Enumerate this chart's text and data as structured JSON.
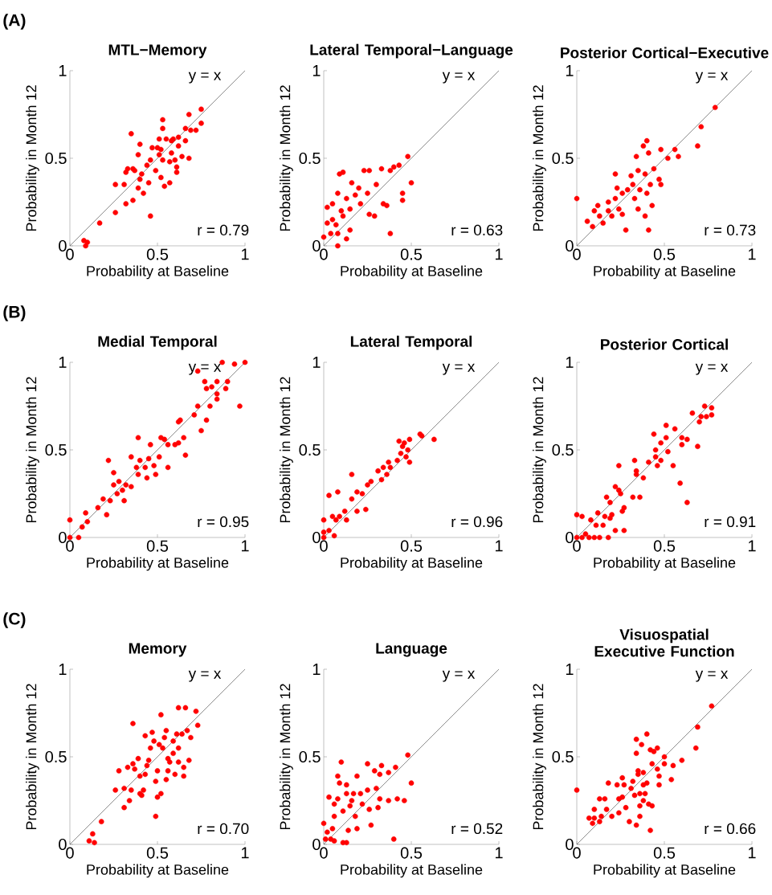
{
  "chart_data": [
    {
      "type": "scatter",
      "title": "MTL−Memory",
      "xlabel": "Probability at Baseline",
      "ylabel": "Probability in Month 12",
      "xlim": [
        0,
        1
      ],
      "ylim": [
        0,
        1
      ],
      "xticks": [
        0,
        0.5,
        1
      ],
      "yticks": [
        0,
        0.5,
        1
      ],
      "annotations": [
        "y = x",
        "(A)",
        "r = 0.79"
      ],
      "series": [
        {
          "type": "scatter",
          "color": "#ff0000",
          "marker": "circle",
          "x": [
            0.08,
            0.09,
            0.1,
            0.17,
            0.26,
            0.26,
            0.31,
            0.32,
            0.36,
            0.35,
            0.32,
            0.36,
            0.39,
            0.4,
            0.39,
            0.4,
            0.42,
            0.45,
            0.44,
            0.46,
            0.46,
            0.47,
            0.49,
            0.51,
            0.52,
            0.53,
            0.53,
            0.52,
            0.54,
            0.53,
            0.55,
            0.57,
            0.58,
            0.57,
            0.59,
            0.6,
            0.61,
            0.61,
            0.62,
            0.62,
            0.64,
            0.66,
            0.66,
            0.68,
            0.68,
            0.69,
            0.72,
            0.75,
            0.75,
            0.58,
            0.51,
            0.5,
            0.37,
            0.33,
            0.41
          ],
          "values": [
            0.03,
            0.0,
            0.02,
            0.13,
            0.19,
            0.35,
            0.35,
            0.42,
            0.44,
            0.64,
            0.24,
            0.26,
            0.33,
            0.38,
            0.52,
            0.58,
            0.3,
            0.36,
            0.46,
            0.17,
            0.49,
            0.56,
            0.43,
            0.61,
            0.55,
            0.67,
            0.72,
            0.39,
            0.34,
            0.49,
            0.61,
            0.36,
            0.53,
            0.48,
            0.61,
            0.49,
            0.45,
            0.42,
            0.57,
            0.62,
            0.51,
            0.67,
            0.6,
            0.75,
            0.5,
            0.66,
            0.66,
            0.78,
            0.7,
            0.6,
            0.52,
            0.56,
            0.43,
            0.44,
            0.41
          ]
        },
        {
          "type": "line",
          "color": "#404040",
          "marker": "none",
          "line_style": "solid",
          "x": [
            0,
            1
          ],
          "values": [
            0,
            1
          ]
        }
      ]
    },
    {
      "type": "scatter",
      "title": "Lateral Temporal−Language",
      "xlabel": "Probability at Baseline",
      "ylabel": "Probability in Month 12",
      "xlim": [
        0,
        1
      ],
      "ylim": [
        0,
        1
      ],
      "xticks": [
        0,
        0.5,
        1
      ],
      "yticks": [
        0,
        0.5,
        1
      ],
      "annotations": [
        "y = x",
        "r = 0.63"
      ],
      "series": [
        {
          "type": "scatter",
          "color": "#ff0000",
          "marker": "circle",
          "x": [
            0.0,
            0.02,
            0.02,
            0.05,
            0.08,
            0.08,
            0.09,
            0.11,
            0.07,
            0.08,
            0.1,
            0.11,
            0.13,
            0.15,
            0.13,
            0.16,
            0.18,
            0.15,
            0.2,
            0.21,
            0.23,
            0.26,
            0.25,
            0.26,
            0.29,
            0.3,
            0.33,
            0.34,
            0.05,
            0.04,
            0.48,
            0.5,
            0.45,
            0.45,
            0.43,
            0.4,
            0.38,
            0.38,
            0.36
          ],
          "values": [
            0.05,
            0.22,
            0.13,
            0.24,
            0.3,
            0.0,
            0.41,
            0.42,
            0.12,
            0.07,
            0.2,
            0.17,
            0.04,
            0.09,
            0.27,
            0.36,
            0.29,
            0.21,
            0.33,
            0.24,
            0.43,
            0.43,
            0.3,
            0.18,
            0.17,
            0.35,
            0.44,
            0.24,
            0.15,
            0.07,
            0.51,
            0.36,
            0.3,
            0.26,
            0.46,
            0.45,
            0.43,
            0.07,
            0.23
          ]
        },
        {
          "type": "line",
          "color": "#404040",
          "marker": "none",
          "line_style": "solid",
          "x": [
            0,
            1
          ],
          "values": [
            0,
            1
          ]
        }
      ]
    },
    {
      "type": "scatter",
      "title": "Posterior Cortical−Executive",
      "xlabel": "Probability at Baseline",
      "ylabel": "Probability in Month 12",
      "xlim": [
        0,
        1
      ],
      "ylim": [
        0,
        1
      ],
      "xticks": [
        0,
        0.5,
        1
      ],
      "yticks": [
        0,
        0.5,
        1
      ],
      "annotations": [
        "y = x",
        "r = 0.73"
      ],
      "series": [
        {
          "type": "scatter",
          "color": "#ff0000",
          "marker": "circle",
          "x": [
            0.0,
            0.06,
            0.09,
            0.1,
            0.12,
            0.13,
            0.15,
            0.18,
            0.18,
            0.2,
            0.22,
            0.22,
            0.23,
            0.24,
            0.26,
            0.26,
            0.28,
            0.29,
            0.31,
            0.32,
            0.33,
            0.34,
            0.35,
            0.35,
            0.36,
            0.38,
            0.39,
            0.39,
            0.4,
            0.41,
            0.4,
            0.41,
            0.42,
            0.43,
            0.44,
            0.47,
            0.48,
            0.48,
            0.52,
            0.56,
            0.58,
            0.69,
            0.71,
            0.79
          ],
          "values": [
            0.27,
            0.14,
            0.11,
            0.2,
            0.23,
            0.17,
            0.13,
            0.25,
            0.2,
            0.17,
            0.41,
            0.27,
            0.33,
            0.21,
            0.18,
            0.3,
            0.09,
            0.32,
            0.4,
            0.35,
            0.27,
            0.51,
            0.43,
            0.21,
            0.32,
            0.57,
            0.41,
            0.17,
            0.6,
            0.53,
            0.3,
            0.09,
            0.35,
            0.23,
            0.44,
            0.38,
            0.55,
            0.35,
            0.5,
            0.55,
            0.51,
            0.57,
            0.68,
            0.79
          ]
        },
        {
          "type": "line",
          "color": "#404040",
          "marker": "none",
          "line_style": "solid",
          "x": [
            0,
            1
          ],
          "values": [
            0,
            1
          ]
        }
      ]
    },
    {
      "type": "scatter",
      "title": "Medial Temporal",
      "xlabel": "Probability at Baseline",
      "ylabel": "Probability in Month 12",
      "xlim": [
        0,
        1
      ],
      "ylim": [
        0,
        1
      ],
      "xticks": [
        0,
        0.5,
        1
      ],
      "yticks": [
        0,
        0.5,
        1
      ],
      "annotations": [
        "y = x",
        "(B)",
        "r = 0.95"
      ],
      "series": [
        {
          "type": "scatter",
          "color": "#ff0000",
          "marker": "circle",
          "x": [
            0.0,
            0.0,
            0.05,
            0.07,
            0.09,
            0.1,
            0.16,
            0.19,
            0.21,
            0.22,
            0.23,
            0.25,
            0.25,
            0.27,
            0.28,
            0.3,
            0.31,
            0.32,
            0.35,
            0.35,
            0.38,
            0.39,
            0.39,
            0.4,
            0.43,
            0.44,
            0.45,
            0.46,
            0.48,
            0.49,
            0.51,
            0.52,
            0.54,
            0.56,
            0.56,
            0.6,
            0.62,
            0.62,
            0.65,
            0.66,
            0.63,
            0.71,
            0.73,
            0.73,
            0.75,
            0.78,
            0.77,
            0.78,
            0.8,
            0.81,
            0.84,
            0.84,
            0.84,
            0.87,
            0.89,
            0.9,
            0.94,
            0.97,
            1.0
          ],
          "values": [
            0.1,
            0.0,
            0.0,
            0.06,
            0.14,
            0.09,
            0.17,
            0.22,
            0.13,
            0.44,
            0.21,
            0.3,
            0.37,
            0.25,
            0.32,
            0.27,
            0.21,
            0.3,
            0.46,
            0.29,
            0.4,
            0.36,
            0.57,
            0.44,
            0.4,
            0.34,
            0.45,
            0.53,
            0.41,
            0.36,
            0.46,
            0.57,
            0.56,
            0.53,
            0.4,
            0.53,
            0.54,
            0.66,
            0.57,
            0.47,
            0.67,
            0.7,
            0.75,
            0.95,
            0.61,
            0.67,
            0.89,
            0.85,
            0.75,
            0.86,
            0.79,
            0.89,
            0.82,
            1.0,
            0.85,
            0.89,
            0.99,
            0.75,
            1.0
          ]
        },
        {
          "type": "line",
          "color": "#404040",
          "marker": "none",
          "line_style": "solid",
          "x": [
            0,
            1
          ],
          "values": [
            0,
            1
          ]
        }
      ]
    },
    {
      "type": "scatter",
      "title": "Lateral Temporal",
      "xlabel": "Probability at Baseline",
      "ylabel": "Probability in Month 12",
      "xlim": [
        0,
        1
      ],
      "ylim": [
        0,
        1
      ],
      "xticks": [
        0,
        0.5,
        1
      ],
      "yticks": [
        0,
        0.5,
        1
      ],
      "annotations": [
        "y = x",
        "r = 0.96"
      ],
      "series": [
        {
          "type": "scatter",
          "color": "#ff0000",
          "marker": "circle",
          "x": [
            0.0,
            0.0,
            0.0,
            0.03,
            0.03,
            0.05,
            0.06,
            0.07,
            0.08,
            0.09,
            0.12,
            0.13,
            0.16,
            0.16,
            0.19,
            0.19,
            0.22,
            0.24,
            0.25,
            0.27,
            0.31,
            0.33,
            0.34,
            0.36,
            0.38,
            0.37,
            0.42,
            0.43,
            0.44,
            0.45,
            0.46,
            0.47,
            0.48,
            0.49,
            0.49,
            0.55,
            0.56,
            0.63
          ],
          "values": [
            0.1,
            0.03,
            0.0,
            0.04,
            0.24,
            0.12,
            0.01,
            0.1,
            0.26,
            0.12,
            0.15,
            0.1,
            0.36,
            0.22,
            0.26,
            0.15,
            0.25,
            0.16,
            0.3,
            0.32,
            0.38,
            0.33,
            0.4,
            0.36,
            0.4,
            0.43,
            0.44,
            0.55,
            0.48,
            0.52,
            0.54,
            0.46,
            0.5,
            0.43,
            0.56,
            0.59,
            0.58,
            0.56
          ]
        },
        {
          "type": "line",
          "color": "#404040",
          "marker": "none",
          "line_style": "solid",
          "x": [
            0,
            1
          ],
          "values": [
            0,
            1
          ]
        }
      ]
    },
    {
      "type": "scatter",
      "title": "Posterior Cortical",
      "xlabel": "Probability at Baseline",
      "ylabel": "Probability in Month 12",
      "xlim": [
        0,
        1
      ],
      "ylim": [
        0,
        1
      ],
      "xticks": [
        0,
        0.5,
        1
      ],
      "yticks": [
        0,
        0.5,
        1
      ],
      "annotations": [
        "y = x",
        "r = 0.91"
      ],
      "series": [
        {
          "type": "scatter",
          "color": "#ff0000",
          "marker": "circle",
          "x": [
            0.0,
            0.03,
            0.0,
            0.03,
            0.05,
            0.07,
            0.1,
            0.13,
            0.18,
            0.08,
            0.12,
            0.11,
            0.15,
            0.16,
            0.17,
            0.19,
            0.19,
            0.2,
            0.22,
            0.22,
            0.24,
            0.24,
            0.25,
            0.26,
            0.27,
            0.27,
            0.32,
            0.33,
            0.34,
            0.36,
            0.34,
            0.38,
            0.41,
            0.44,
            0.45,
            0.45,
            0.46,
            0.48,
            0.48,
            0.51,
            0.51,
            0.52,
            0.55,
            0.56,
            0.59,
            0.6,
            0.6,
            0.63,
            0.63,
            0.66,
            0.69,
            0.7,
            0.71,
            0.73,
            0.74,
            0.77,
            0.77
          ],
          "values": [
            0.13,
            0.12,
            0.0,
            0.0,
            0.02,
            0.0,
            0.0,
            0.0,
            0.0,
            0.1,
            0.14,
            0.07,
            0.07,
            0.12,
            0.23,
            0.2,
            0.11,
            0.13,
            0.29,
            0.04,
            0.27,
            0.41,
            0.25,
            0.15,
            0.17,
            0.04,
            0.23,
            0.44,
            0.36,
            0.23,
            0.38,
            0.34,
            0.43,
            0.59,
            0.5,
            0.46,
            0.41,
            0.44,
            0.54,
            0.64,
            0.57,
            0.49,
            0.41,
            0.62,
            0.31,
            0.53,
            0.57,
            0.56,
            0.2,
            0.71,
            0.52,
            0.66,
            0.69,
            0.75,
            0.69,
            0.7,
            0.74
          ]
        },
        {
          "type": "line",
          "color": "#404040",
          "marker": "none",
          "line_style": "solid",
          "x": [
            0,
            1
          ],
          "values": [
            0,
            1
          ]
        }
      ]
    },
    {
      "type": "scatter",
      "title": "Memory",
      "xlabel": "Probability at Baseline",
      "ylabel": "Probability in Month 12",
      "xlim": [
        0,
        1
      ],
      "ylim": [
        0,
        1
      ],
      "xticks": [
        0,
        0.5,
        1
      ],
      "yticks": [
        0,
        0.5,
        1
      ],
      "annotations": [
        "y = x",
        "(C)",
        "r = 0.70"
      ],
      "series": [
        {
          "type": "scatter",
          "color": "#ff0000",
          "marker": "circle",
          "x": [
            0.11,
            0.13,
            0.14,
            0.18,
            0.26,
            0.28,
            0.31,
            0.31,
            0.33,
            0.34,
            0.35,
            0.36,
            0.36,
            0.37,
            0.39,
            0.4,
            0.4,
            0.41,
            0.42,
            0.43,
            0.43,
            0.44,
            0.45,
            0.46,
            0.47,
            0.48,
            0.49,
            0.49,
            0.5,
            0.5,
            0.51,
            0.52,
            0.52,
            0.53,
            0.54,
            0.55,
            0.56,
            0.56,
            0.57,
            0.59,
            0.59,
            0.6,
            0.61,
            0.62,
            0.62,
            0.62,
            0.64,
            0.65,
            0.65,
            0.66,
            0.67,
            0.68,
            0.69,
            0.72,
            0.73,
            0.55
          ],
          "values": [
            0.02,
            0.06,
            0.01,
            0.13,
            0.31,
            0.42,
            0.32,
            0.21,
            0.44,
            0.25,
            0.31,
            0.46,
            0.69,
            0.43,
            0.49,
            0.29,
            0.39,
            0.28,
            0.31,
            0.62,
            0.4,
            0.45,
            0.48,
            0.55,
            0.64,
            0.59,
            0.16,
            0.36,
            0.42,
            0.27,
            0.57,
            0.74,
            0.29,
            0.55,
            0.61,
            0.37,
            0.49,
            0.42,
            0.47,
            0.59,
            0.52,
            0.4,
            0.63,
            0.47,
            0.55,
            0.78,
            0.63,
            0.39,
            0.44,
            0.78,
            0.65,
            0.48,
            0.61,
            0.76,
            0.68,
            0.65
          ]
        },
        {
          "type": "line",
          "color": "#404040",
          "marker": "none",
          "line_style": "solid",
          "x": [
            0,
            1
          ],
          "values": [
            0,
            1
          ]
        }
      ]
    },
    {
      "type": "scatter",
      "title": "Language",
      "xlabel": "Probability at Baseline",
      "ylabel": "Probability in Month 12",
      "xlim": [
        0,
        1
      ],
      "ylim": [
        0,
        1
      ],
      "xticks": [
        0,
        0.5,
        1
      ],
      "yticks": [
        0,
        0.5,
        1
      ],
      "annotations": [
        "y = x",
        "r = 0.52"
      ],
      "series": [
        {
          "type": "scatter",
          "color": "#ff0000",
          "marker": "circle",
          "x": [
            0.0,
            0.01,
            0.02,
            0.03,
            0.04,
            0.05,
            0.06,
            0.06,
            0.06,
            0.08,
            0.08,
            0.09,
            0.1,
            0.11,
            0.11,
            0.13,
            0.13,
            0.13,
            0.14,
            0.15,
            0.16,
            0.17,
            0.18,
            0.19,
            0.19,
            0.21,
            0.22,
            0.25,
            0.25,
            0.26,
            0.27,
            0.29,
            0.3,
            0.31,
            0.32,
            0.32,
            0.33,
            0.48,
            0.5,
            0.41,
            0.42,
            0.46,
            0.37,
            0.37,
            0.4
          ],
          "values": [
            0.12,
            0.03,
            0.07,
            0.27,
            0.03,
            0.09,
            0.23,
            0.16,
            0.02,
            0.39,
            0.26,
            0.35,
            0.47,
            0.19,
            0.01,
            0.01,
            0.29,
            0.34,
            0.08,
            0.22,
            0.25,
            0.29,
            0.16,
            0.39,
            0.09,
            0.29,
            0.23,
            0.31,
            0.46,
            0.2,
            0.11,
            0.42,
            0.32,
            0.21,
            0.26,
            0.4,
            0.45,
            0.51,
            0.35,
            0.44,
            0.26,
            0.25,
            0.41,
            0.25,
            0.03
          ]
        },
        {
          "type": "line",
          "color": "#404040",
          "marker": "none",
          "line_style": "solid",
          "x": [
            0,
            1
          ],
          "values": [
            0,
            1
          ]
        }
      ]
    },
    {
      "type": "scatter",
      "title": "Visuospatial Executive Function",
      "xlabel": "Probability at Baseline",
      "ylabel": "Probability in Month 12",
      "xlim": [
        0,
        1
      ],
      "ylim": [
        0,
        1
      ],
      "xticks": [
        0,
        0.5,
        1
      ],
      "yticks": [
        0,
        0.5,
        1
      ],
      "annotations": [
        "y = x",
        "r = 0.66"
      ],
      "series": [
        {
          "type": "scatter",
          "color": "#ff0000",
          "marker": "circle",
          "x": [
            0.0,
            0.07,
            0.09,
            0.1,
            0.1,
            0.13,
            0.13,
            0.14,
            0.16,
            0.17,
            0.18,
            0.2,
            0.23,
            0.24,
            0.24,
            0.26,
            0.26,
            0.27,
            0.28,
            0.3,
            0.31,
            0.32,
            0.33,
            0.34,
            0.34,
            0.34,
            0.35,
            0.35,
            0.36,
            0.36,
            0.36,
            0.37,
            0.38,
            0.38,
            0.38,
            0.39,
            0.4,
            0.4,
            0.41,
            0.42,
            0.42,
            0.43,
            0.43,
            0.44,
            0.46,
            0.46,
            0.47,
            0.47,
            0.5,
            0.5,
            0.54,
            0.55,
            0.6,
            0.68,
            0.69,
            0.77
          ],
          "values": [
            0.31,
            0.15,
            0.12,
            0.15,
            0.2,
            0.13,
            0.26,
            0.16,
            0.26,
            0.2,
            0.35,
            0.16,
            0.34,
            0.26,
            0.18,
            0.27,
            0.38,
            0.34,
            0.21,
            0.13,
            0.32,
            0.36,
            0.28,
            0.6,
            0.11,
            0.52,
            0.42,
            0.4,
            0.22,
            0.29,
            0.16,
            0.57,
            0.34,
            0.25,
            0.41,
            0.29,
            0.63,
            0.35,
            0.23,
            0.08,
            0.54,
            0.22,
            0.46,
            0.53,
            0.55,
            0.43,
            0.34,
            0.39,
            0.5,
            0.46,
            0.37,
            0.45,
            0.48,
            0.55,
            0.67,
            0.79
          ]
        },
        {
          "type": "line",
          "color": "#404040",
          "marker": "none",
          "line_style": "solid",
          "x": [
            0,
            1
          ],
          "values": [
            0,
            1
          ]
        }
      ]
    }
  ]
}
